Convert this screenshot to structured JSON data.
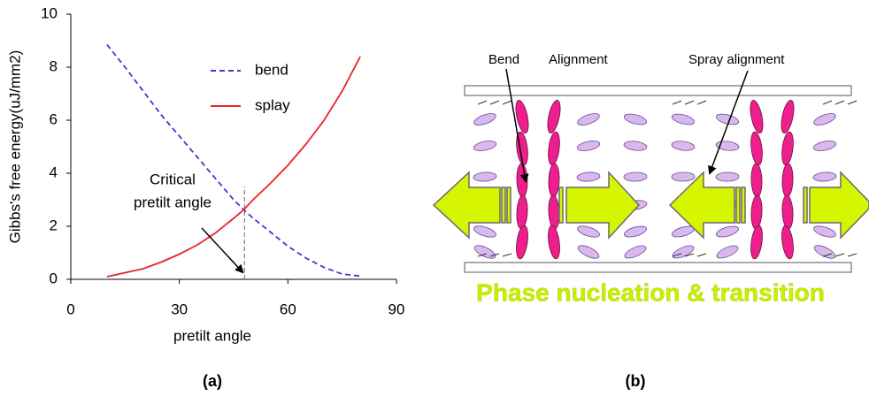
{
  "chart_data": {
    "type": "line",
    "x": [
      10,
      15,
      20,
      25,
      30,
      35,
      40,
      45,
      48,
      50,
      55,
      60,
      65,
      70,
      75,
      80
    ],
    "series": [
      {
        "name": "bend",
        "color": "#5a2cc8",
        "dash": true,
        "values": [
          8.85,
          8.0,
          7.1,
          6.2,
          5.4,
          4.6,
          3.8,
          3.0,
          2.6,
          2.35,
          1.8,
          1.25,
          0.8,
          0.45,
          0.2,
          0.12
        ]
      },
      {
        "name": "splay",
        "color": "#e8232b",
        "dash": false,
        "values": [
          0.1,
          0.25,
          0.4,
          0.65,
          0.95,
          1.3,
          1.75,
          2.3,
          2.65,
          2.95,
          3.6,
          4.3,
          5.1,
          6.0,
          7.1,
          8.4
        ]
      }
    ],
    "xlim": [
      0,
      90
    ],
    "xticks": [
      0,
      30,
      60,
      90
    ],
    "ylim": [
      0,
      10
    ],
    "yticks": [
      0,
      2,
      4,
      6,
      8,
      10
    ],
    "x_label": "pretilt angle",
    "y_label": "Gibbs's free energy(uJ/mm2)",
    "legend": "upper center",
    "grid": false,
    "annotation": {
      "text": [
        "Critical",
        "pretilt angle"
      ],
      "x": 48,
      "y": 3.5
    }
  },
  "diagram": {
    "labels": [
      "Bend",
      "Alignment",
      "Spray alignment"
    ],
    "banner": "Phase nucleation & transition"
  },
  "captions": [
    "(a)",
    "(b)"
  ]
}
